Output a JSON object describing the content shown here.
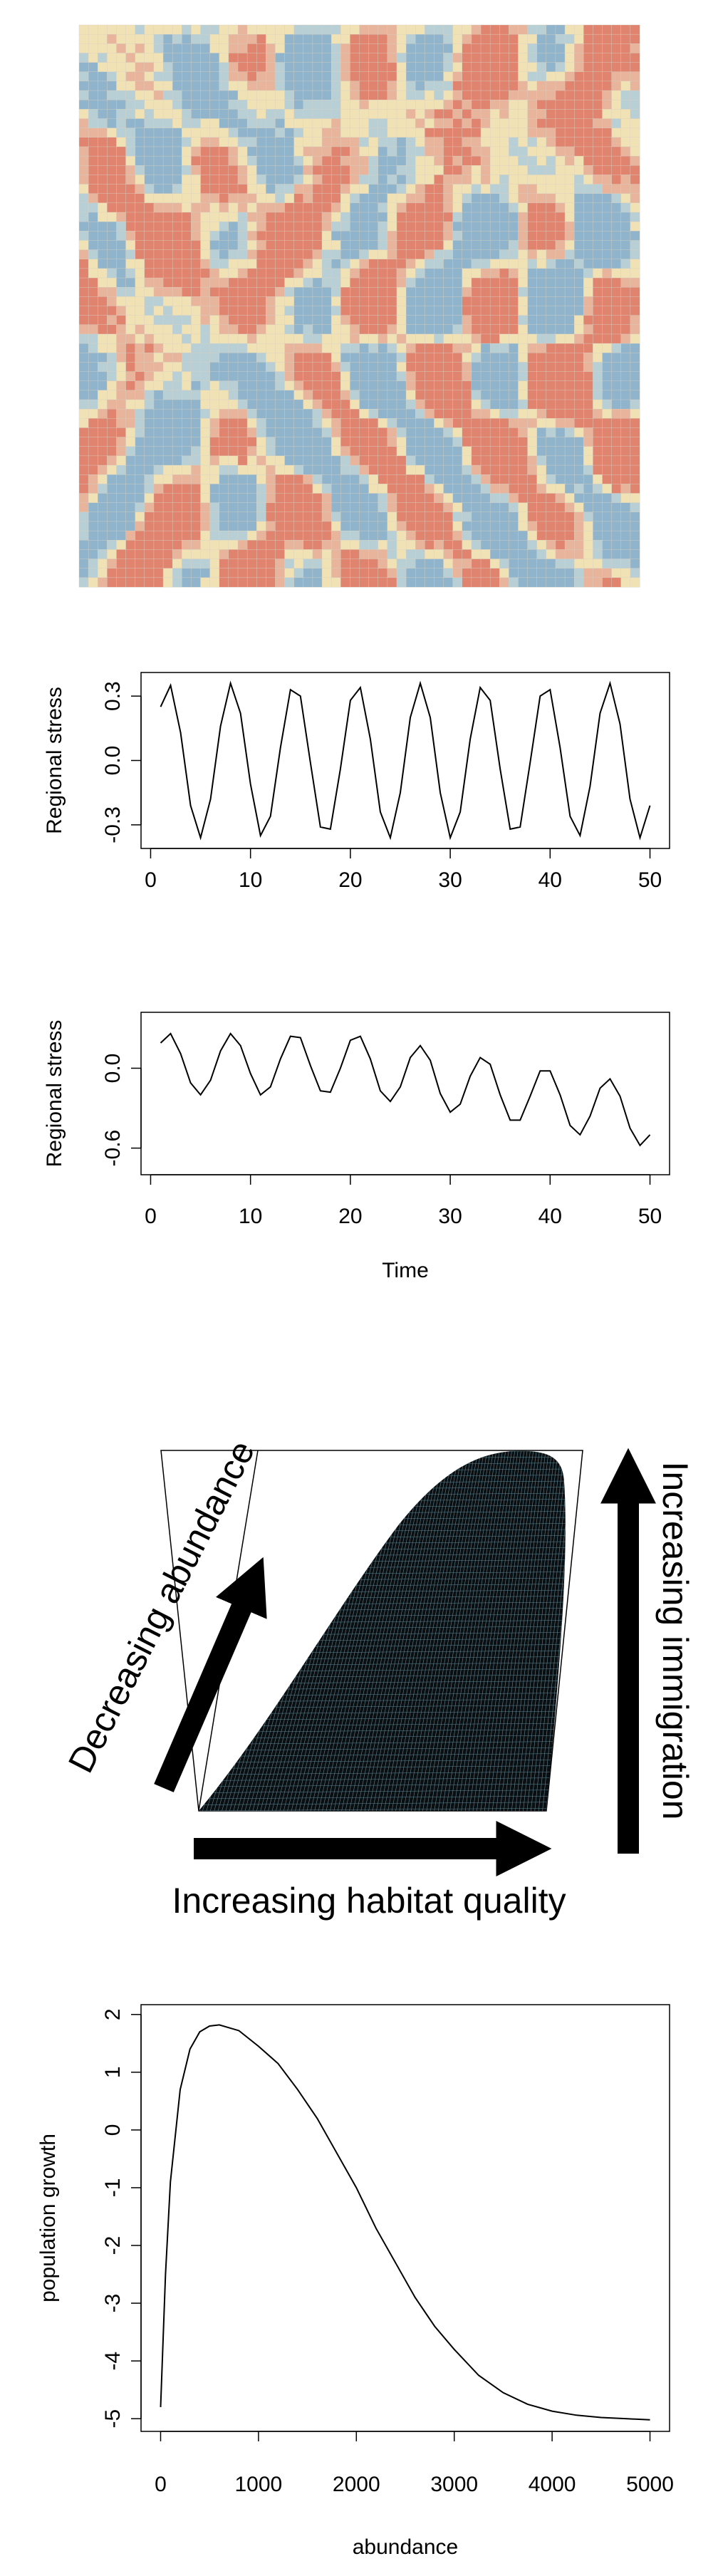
{
  "chart_data": [
    {
      "type": "line",
      "ylabel": "Regional stress",
      "x": [
        1,
        2,
        3,
        4,
        5,
        6,
        7,
        8,
        9,
        10,
        11,
        12,
        13,
        14,
        15,
        16,
        17,
        18,
        19,
        20,
        21,
        22,
        23,
        24,
        25,
        26,
        27,
        28,
        29,
        30,
        31,
        32,
        33,
        34,
        35,
        36,
        37,
        38,
        39,
        40,
        41,
        42,
        43,
        44,
        45,
        46,
        47,
        48,
        49,
        50
      ],
      "values": [
        0.25,
        0.35,
        0.13,
        -0.21,
        -0.36,
        -0.18,
        0.16,
        0.36,
        0.22,
        -0.11,
        -0.35,
        -0.26,
        0.06,
        0.33,
        0.3,
        -0.01,
        -0.31,
        -0.32,
        -0.04,
        0.28,
        0.34,
        0.1,
        -0.24,
        -0.36,
        -0.15,
        0.2,
        0.36,
        0.2,
        -0.15,
        -0.36,
        -0.24,
        0.1,
        0.34,
        0.28,
        -0.04,
        -0.32,
        -0.31,
        -0.01,
        0.3,
        0.33,
        0.06,
        -0.26,
        -0.35,
        -0.12,
        0.22,
        0.36,
        0.17,
        -0.18,
        -0.36,
        -0.21
      ],
      "color": "#000000",
      "xlim": [
        -0.96,
        51.96
      ],
      "xticks": [
        0,
        10,
        20,
        30,
        40,
        50
      ],
      "ylim": [
        -0.41,
        0.41
      ],
      "yticks": [
        -0.3,
        {
          "value": 0,
          "label": "0.0"
        },
        0.3
      ]
    },
    {
      "type": "line",
      "ylabel": "Regional stress",
      "xlabel": "Time",
      "x": [
        1,
        2,
        3,
        4,
        5,
        6,
        7,
        8,
        9,
        10,
        11,
        12,
        13,
        14,
        15,
        16,
        17,
        18,
        19,
        20,
        21,
        22,
        23,
        24,
        25,
        26,
        27,
        28,
        29,
        30,
        31,
        32,
        33,
        34,
        35,
        36,
        37,
        38,
        39,
        40,
        41,
        42,
        43,
        44,
        45,
        46,
        47,
        48,
        49,
        50
      ],
      "values": [
        0.19,
        0.26,
        0.11,
        -0.11,
        -0.2,
        -0.09,
        0.13,
        0.26,
        0.17,
        -0.04,
        -0.2,
        -0.14,
        0.07,
        0.24,
        0.23,
        0.02,
        -0.17,
        -0.18,
        0.0,
        0.21,
        0.24,
        0.07,
        -0.17,
        -0.25,
        -0.14,
        0.08,
        0.17,
        0.06,
        -0.19,
        -0.33,
        -0.27,
        -0.06,
        0.08,
        0.03,
        -0.2,
        -0.39,
        -0.39,
        -0.21,
        -0.02,
        -0.02,
        -0.2,
        -0.43,
        -0.5,
        -0.36,
        -0.15,
        -0.08,
        -0.21,
        -0.45,
        -0.58,
        -0.5
      ],
      "color": "#000000",
      "xlim": [
        -0.96,
        51.96
      ],
      "xticks": [
        0,
        10,
        20,
        30,
        40,
        50
      ],
      "ylim": [
        -0.8,
        0.42
      ],
      "yticks": [
        -0.6,
        {
          "value": 0,
          "label": "0.0"
        }
      ]
    },
    {
      "type": "line",
      "ylabel": "population growth",
      "xlabel": "abundance",
      "x": [
        0,
        50,
        100,
        200,
        300,
        400,
        500,
        600,
        800,
        1000,
        1200,
        1400,
        1600,
        1800,
        2000,
        2200,
        2400,
        2600,
        2800,
        3000,
        3250,
        3500,
        3750,
        4000,
        4250,
        4500,
        4750,
        5000
      ],
      "values": [
        -4.8,
        -2.5,
        -0.9,
        0.7,
        1.4,
        1.7,
        1.8,
        1.82,
        1.72,
        1.45,
        1.15,
        0.7,
        0.2,
        -0.4,
        -1.0,
        -1.7,
        -2.3,
        -2.9,
        -3.4,
        -3.8,
        -4.25,
        -4.55,
        -4.75,
        -4.87,
        -4.94,
        -4.98,
        -5.0,
        -5.02
      ],
      "color": "#000000",
      "xlim": [
        -200,
        5200
      ],
      "xticks": [
        0,
        1000,
        2000,
        3000,
        4000,
        5000
      ],
      "ylim": [
        -5.22,
        2.17
      ],
      "yticks": [
        -5,
        -4,
        -3,
        -2,
        -1,
        0,
        1,
        2
      ]
    }
  ],
  "perspective_plot": {
    "labels": [
      "Decreasing abundance",
      "Increasing habitat quality",
      "Increasing immigration"
    ]
  }
}
